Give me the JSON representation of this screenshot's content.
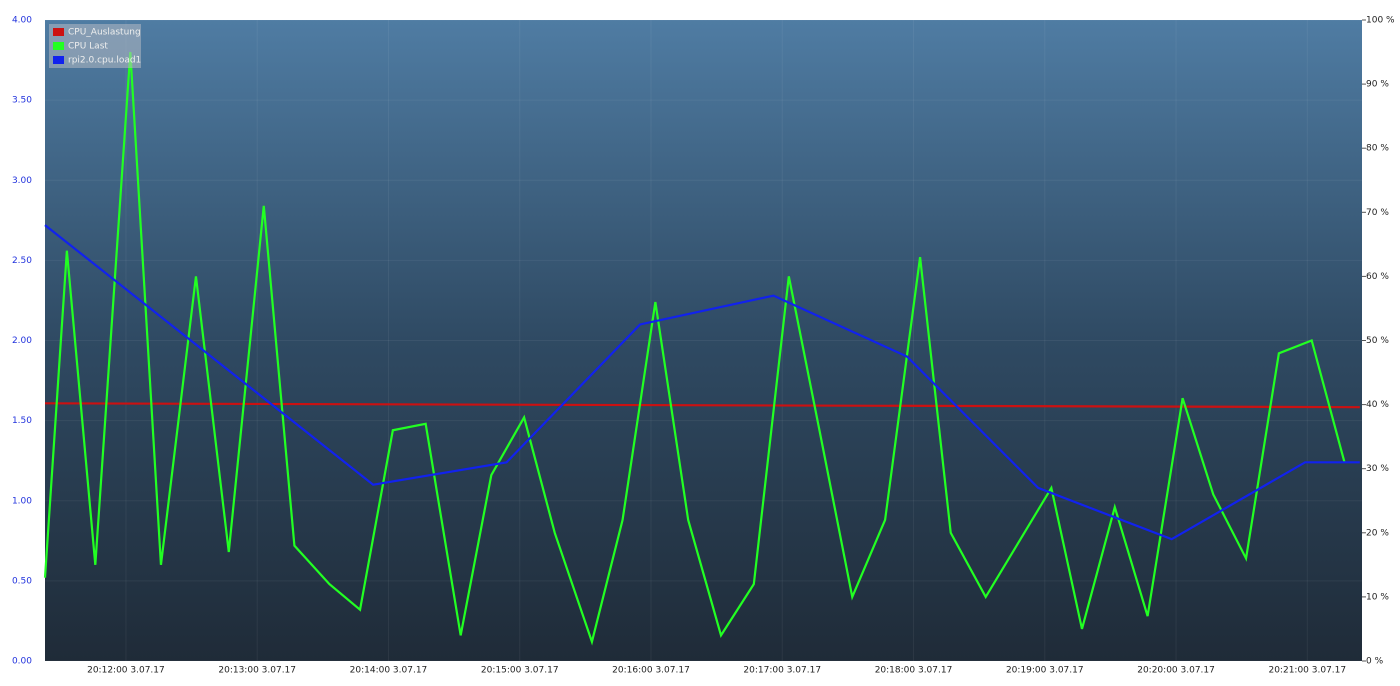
{
  "chart_data": {
    "type": "line",
    "xlim": [
      "20:11:23",
      "20:21:25"
    ],
    "xticks": [
      {
        "value": "20:12:00",
        "label": "20:12:00 3.07.17"
      },
      {
        "value": "20:13:00",
        "label": "20:13:00 3.07.17"
      },
      {
        "value": "20:14:00",
        "label": "20:14:00 3.07.17"
      },
      {
        "value": "20:15:00",
        "label": "20:15:00 3.07.17"
      },
      {
        "value": "20:16:00",
        "label": "20:16:00 3.07.17"
      },
      {
        "value": "20:17:00",
        "label": "20:17:00 3.07.17"
      },
      {
        "value": "20:18:00",
        "label": "20:18:00 3.07.17"
      },
      {
        "value": "20:19:00",
        "label": "20:19:00 3.07.17"
      },
      {
        "value": "20:20:00",
        "label": "20:20:00 3.07.17"
      },
      {
        "value": "20:21:00",
        "label": "20:21:00 3.07.17"
      }
    ],
    "ylim": [
      0,
      4
    ],
    "yticks": [
      {
        "value": 0,
        "label": "0.00"
      },
      {
        "value": 0.5,
        "label": "0.50"
      },
      {
        "value": 1,
        "label": "1.00"
      },
      {
        "value": 1.5,
        "label": "1.50"
      },
      {
        "value": 2,
        "label": "2.00"
      },
      {
        "value": 2.5,
        "label": "2.50"
      },
      {
        "value": 3,
        "label": "3.00"
      },
      {
        "value": 3.5,
        "label": "3.50"
      },
      {
        "value": 4,
        "label": "4.00"
      }
    ],
    "y2lim": [
      0,
      100
    ],
    "y2ticks": [
      {
        "value": 0,
        "label": "0 %"
      },
      {
        "value": 10,
        "label": "10 %"
      },
      {
        "value": 20,
        "label": "20 %"
      },
      {
        "value": 30,
        "label": "30 %"
      },
      {
        "value": 40,
        "label": "40 %"
      },
      {
        "value": 50,
        "label": "50 %"
      },
      {
        "value": 60,
        "label": "60 %"
      },
      {
        "value": 70,
        "label": "70 %"
      },
      {
        "value": 80,
        "label": "80 %"
      },
      {
        "value": 90,
        "label": "90 %"
      },
      {
        "value": 100,
        "label": "100 %"
      }
    ],
    "grid": true,
    "legend": "top-left",
    "series": [
      {
        "name": "CPU_Auslastung",
        "color": "#cc1111",
        "axis": "y2",
        "x": [
          "20:11:23",
          "20:21:24"
        ],
        "values": [
          40.2,
          39.6
        ]
      },
      {
        "name": "CPU Last",
        "color": "#22ff22",
        "axis": "y2",
        "x": [
          "20:11:23",
          "20:11:33",
          "20:11:46",
          "20:12:02",
          "20:12:16",
          "20:12:32",
          "20:12:47",
          "20:13:03",
          "20:13:17",
          "20:13:33",
          "20:13:47",
          "20:14:02",
          "20:14:17",
          "20:14:33",
          "20:14:47",
          "20:15:02",
          "20:15:16",
          "20:15:33",
          "20:15:47",
          "20:16:02",
          "20:16:17",
          "20:16:32",
          "20:16:47",
          "20:17:03",
          "20:17:17",
          "20:17:32",
          "20:17:47",
          "20:18:03",
          "20:18:17",
          "20:18:33",
          "20:19:03",
          "20:19:17",
          "20:19:32",
          "20:19:47",
          "20:20:03",
          "20:20:17",
          "20:20:32",
          "20:20:47",
          "20:21:02",
          "20:21:17"
        ],
        "values": [
          13,
          64,
          15,
          95,
          15,
          60,
          17,
          71,
          18,
          12,
          8,
          36,
          37,
          4,
          29,
          38,
          20,
          3,
          22,
          56,
          22,
          4,
          12,
          60,
          36,
          10,
          22,
          63,
          20,
          10,
          27,
          5,
          24,
          7,
          41,
          26,
          16,
          48,
          50,
          31
        ]
      },
      {
        "name": "rpi2.0.cpu.load1",
        "color": "#1122ee",
        "x": [
          "20:11:23",
          "20:13:53",
          "20:14:54",
          "20:15:55",
          "20:16:56",
          "20:17:57",
          "20:18:57",
          "20:19:58",
          "20:20:59",
          "20:21:24"
        ],
        "values": [
          2.72,
          1.1,
          1.24,
          2.1,
          2.28,
          1.9,
          1.08,
          0.76,
          1.24,
          1.24
        ]
      }
    ]
  }
}
